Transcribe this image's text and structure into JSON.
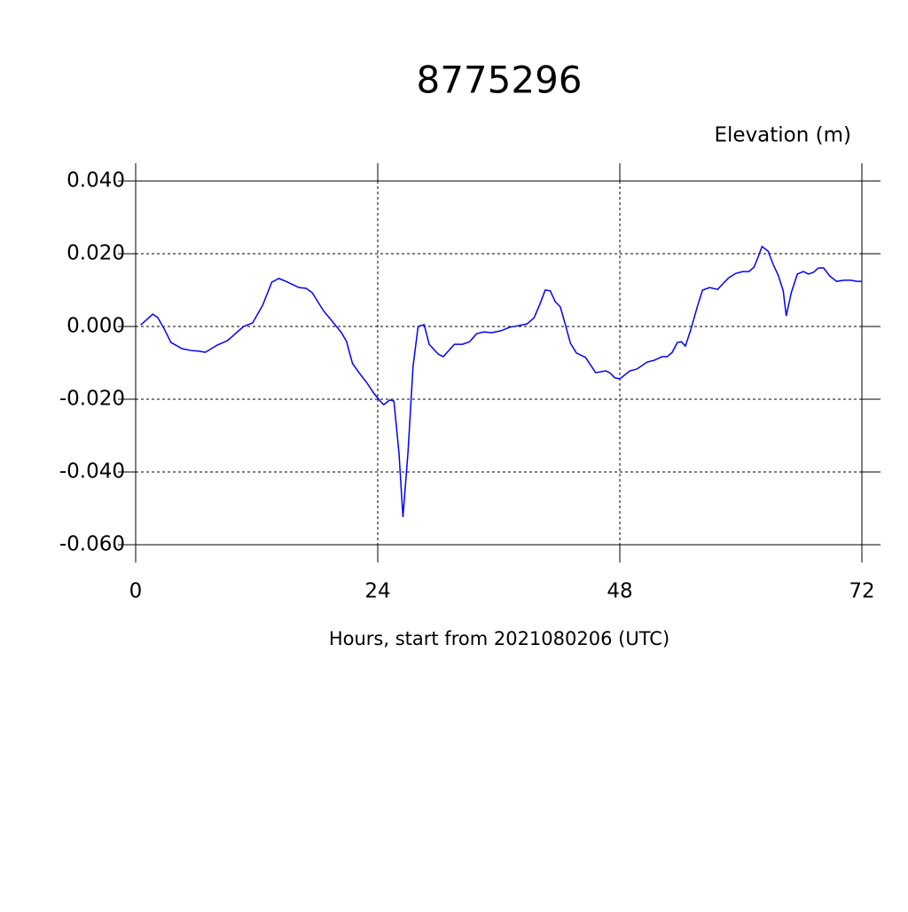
{
  "chart_data": {
    "type": "line",
    "title": "8775296",
    "y_label": "Elevation (m)",
    "x_label": "Hours, start from 2021080206 (UTC)",
    "xlim": [
      0,
      72
    ],
    "ylim": [
      -0.06,
      0.04
    ],
    "xticks": [
      0,
      24,
      48,
      72
    ],
    "yticks": [
      {
        "value": -0.06,
        "label": "-0.060"
      },
      {
        "value": -0.04,
        "label": "-0.040"
      },
      {
        "value": -0.02,
        "label": "-0.020"
      },
      {
        "value": 0,
        "label": "0.000"
      },
      {
        "value": 0.02,
        "label": "0.020"
      },
      {
        "value": 0.04,
        "label": "0.040"
      }
    ],
    "grid": true,
    "color": "#0000ff",
    "x": [
      0.5,
      1.7,
      2.2,
      2.8,
      3.5,
      4.6,
      5.5,
      6.3,
      6.9,
      8.1,
      9.1,
      10.0,
      10.7,
      11.6,
      12.6,
      13.5,
      14.2,
      14.9,
      16.2,
      16.9,
      17.5,
      18.6,
      19.7,
      20.4,
      20.9,
      21.5,
      22.2,
      22.9,
      23.6,
      24.3,
      24.6,
      25.2,
      25.6,
      26.1,
      26.5,
      27.0,
      27.5,
      28.0,
      28.6,
      29.1,
      30.0,
      30.5,
      31.6,
      32.4,
      33.1,
      33.8,
      34.5,
      35.3,
      36.2,
      37.1,
      37.9,
      38.8,
      39.5,
      40.1,
      40.6,
      41.1,
      41.6,
      42.1,
      42.6,
      43.1,
      43.7,
      44.6,
      45.6,
      46.6,
      47.0,
      47.5,
      48.0,
      49.0,
      49.7,
      50.7,
      51.4,
      52.2,
      52.7,
      53.2,
      53.7,
      54.1,
      54.5,
      55.0,
      55.7,
      56.2,
      56.9,
      57.7,
      58.2,
      58.8,
      59.5,
      60.2,
      60.8,
      61.3,
      61.7,
      62.1,
      62.7,
      63.2,
      63.7,
      64.2,
      64.5,
      65.0,
      65.6,
      66.2,
      66.7,
      67.2,
      67.7,
      68.2,
      68.8,
      69.5,
      70.2,
      70.9,
      71.5,
      72.0
    ],
    "values": [
      0.0004,
      0.0034,
      0.0024,
      -0.0005,
      -0.0044,
      -0.0061,
      -0.0066,
      -0.0068,
      -0.0071,
      -0.0051,
      -0.0039,
      -0.0017,
      0.0,
      0.001,
      0.0059,
      0.0122,
      0.0132,
      0.0124,
      0.0107,
      0.0105,
      0.0093,
      0.0044,
      0.0007,
      -0.0017,
      -0.0041,
      -0.0102,
      -0.0129,
      -0.0154,
      -0.0183,
      -0.0207,
      -0.0215,
      -0.0202,
      -0.0205,
      -0.0346,
      -0.0524,
      -0.0346,
      -0.011,
      0.0,
      0.0005,
      -0.0049,
      -0.0076,
      -0.0083,
      -0.0049,
      -0.0049,
      -0.0042,
      -0.002,
      -0.0015,
      -0.0017,
      -0.0012,
      -0.0002,
      0.0002,
      0.0007,
      0.0024,
      0.0063,
      0.01,
      0.0098,
      0.0068,
      0.0054,
      0.0005,
      -0.0046,
      -0.0073,
      -0.0085,
      -0.0127,
      -0.0122,
      -0.0127,
      -0.0141,
      -0.0144,
      -0.0122,
      -0.0117,
      -0.0098,
      -0.0093,
      -0.0083,
      -0.0083,
      -0.0071,
      -0.0044,
      -0.0042,
      -0.0054,
      -0.0012,
      0.0056,
      0.01,
      0.0107,
      0.0102,
      0.0117,
      0.0134,
      0.0146,
      0.0151,
      0.0151,
      0.0163,
      0.019,
      0.022,
      0.0207,
      0.0171,
      0.0141,
      0.0098,
      0.0029,
      0.0093,
      0.0144,
      0.0151,
      0.0144,
      0.0149,
      0.0161,
      0.0161,
      0.0139,
      0.0124,
      0.0127,
      0.0127,
      0.0124,
      0.0124
    ]
  }
}
